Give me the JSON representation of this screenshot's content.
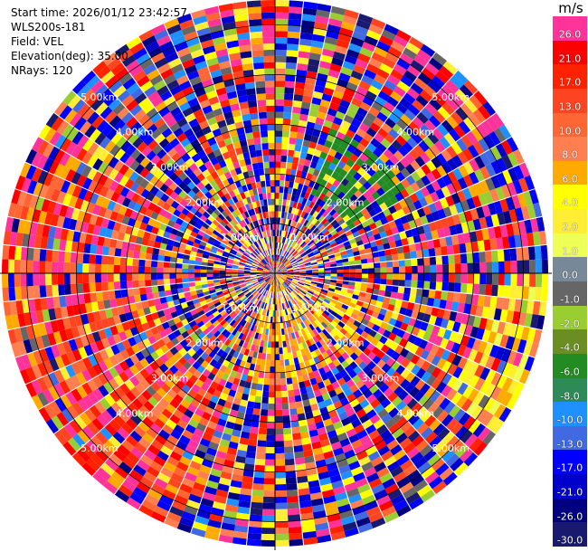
{
  "header": {
    "start_time": "Start time: 2026/01/12 23:42:57",
    "instrument": "WLS200s-181",
    "field": "Field: VEL",
    "elevation": "Elevation(deg): 35.00",
    "nrays": "NRays: 120"
  },
  "colorbar": {
    "unit": "m/s",
    "ticks": [
      "26.0",
      "21.0",
      "17.0",
      "13.0",
      "10.0",
      "8.0",
      "6.0",
      "4.0",
      "2.0",
      "1.0",
      "0.0",
      "-1.0",
      "-2.0",
      "-4.0",
      "-6.0",
      "-8.0",
      "-10.0",
      "-13.0",
      "-17.0",
      "-21.0",
      "-26.0",
      "-30.0"
    ],
    "colors": [
      "#ff3399",
      "#ff0000",
      "#ff2200",
      "#ff4422",
      "#ff6633",
      "#ff7f50",
      "#ffaa00",
      "#ffff00",
      "#ffee33",
      "#eeff55",
      "#778899",
      "#666666",
      "#9acd32",
      "#6b8e23",
      "#228b22",
      "#2e8b57",
      "#1e90ff",
      "#4169e1",
      "#0000ff",
      "#0000cd",
      "#000080",
      "#191970"
    ]
  },
  "range_labels": [
    "1.00km",
    "2.00km",
    "3.00km",
    "4.00km",
    "5.00km"
  ],
  "chart_data": {
    "type": "ppi",
    "field": "VEL",
    "units": "m/s",
    "n_rays": 120,
    "elevation_deg": 35.0,
    "max_range_km": 5.5,
    "range_rings_km": [
      1,
      2,
      3,
      4,
      5
    ],
    "color_levels": [
      -30,
      -26,
      -21,
      -17,
      -13,
      -10,
      -8,
      -6,
      -4,
      -2,
      -1,
      0,
      1,
      2,
      4,
      6,
      8,
      10,
      13,
      17,
      21,
      26
    ]
  }
}
